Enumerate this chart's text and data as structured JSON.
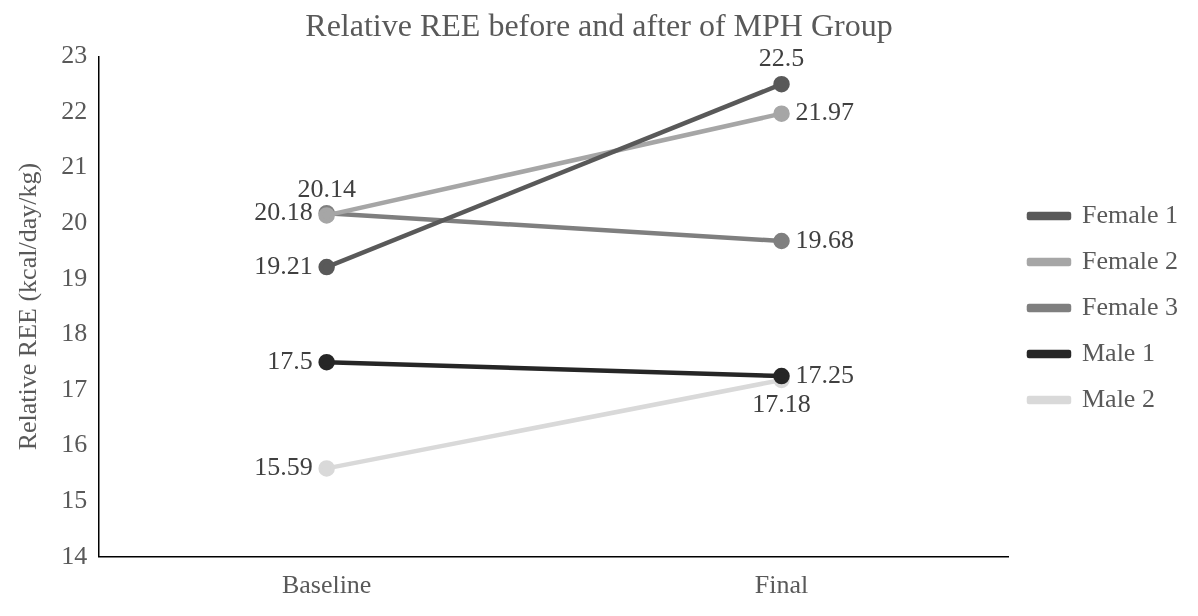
{
  "chart_data": {
    "type": "line",
    "title": "Relative REE before and after of MPH Group",
    "ylabel": "Relative REE (kcal/day/kg)",
    "categories": [
      "Baseline",
      "Final"
    ],
    "series": [
      {
        "name": "Female 1",
        "color": "#595959",
        "values": [
          19.21,
          22.5
        ]
      },
      {
        "name": "Female 2",
        "color": "#a6a6a6",
        "values": [
          20.14,
          21.97
        ]
      },
      {
        "name": "Female 3",
        "color": "#7f7f7f",
        "values": [
          20.18,
          19.68
        ]
      },
      {
        "name": "Male 1",
        "color": "#262626",
        "values": [
          17.5,
          17.25
        ]
      },
      {
        "name": "Male 2",
        "color": "#d9d9d9",
        "values": [
          15.59,
          17.18
        ]
      }
    ],
    "ylim": [
      14,
      23
    ],
    "yticks": [
      14,
      15,
      16,
      17,
      18,
      19,
      20,
      21,
      22,
      23
    ],
    "grid": false,
    "legend": "right",
    "marker": "circle",
    "line_style": "solid",
    "data_labels": true
  }
}
